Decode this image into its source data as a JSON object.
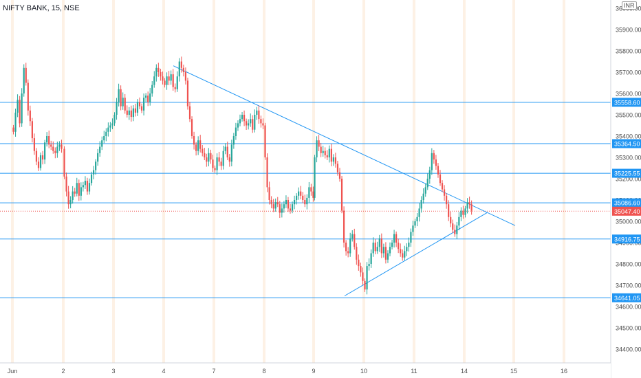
{
  "header": {
    "symbol_title": "NIFTY BANK, 15, NSE",
    "currency_badge": "INR"
  },
  "colors": {
    "up": "#26a69a",
    "down": "#ef5350",
    "level_line": "#2196f3",
    "trendline": "#2196f3",
    "current_price": "#ef5350",
    "day_separator": "#fde8d4"
  },
  "chart_data": {
    "type": "candlestick",
    "title": "NIFTY BANK, 15, NSE",
    "y_axis": {
      "range": [
        34350,
        36080
      ],
      "ticks": [
        34400,
        34500,
        34600,
        34700,
        34800,
        34900,
        35000,
        35100,
        35200,
        35300,
        35400,
        35500,
        35600,
        35700,
        35800,
        35900,
        36000
      ],
      "tick_labels": [
        "34400.00",
        "34500.00",
        "34600.00",
        "34700.00",
        "34800.00",
        "34900.00",
        "35000.00",
        "35100.00",
        "35200.00",
        "35300.00",
        "35400.00",
        "35500.00",
        "35600.00",
        "35700.00",
        "35800.00",
        "35900.00",
        "36000.00"
      ]
    },
    "x_axis": {
      "labels": [
        "Jun",
        "2",
        "3",
        "4",
        "7",
        "8",
        "9",
        "10",
        "11",
        "14",
        "15",
        "16"
      ]
    },
    "horizontal_levels": [
      {
        "value": 35558.6,
        "label": "35558.60"
      },
      {
        "value": 35364.5,
        "label": "35364.50"
      },
      {
        "value": 35225.55,
        "label": "35225.55"
      },
      {
        "value": 35086.6,
        "label": "35086.60"
      },
      {
        "value": 34916.75,
        "label": "34916.75"
      },
      {
        "value": 34641.05,
        "label": "34641.05"
      }
    ],
    "current_price": {
      "value": 35047.4,
      "label": "35047.40"
    },
    "trendlines": [
      {
        "name": "upper",
        "from": {
          "day": "4",
          "price": 35730
        },
        "to": {
          "day": "15",
          "price": 34980
        }
      },
      {
        "name": "lower",
        "from": {
          "day": "10",
          "price": 34650
        },
        "to": {
          "day": "14",
          "price": 35040
        }
      }
    ],
    "days": [
      {
        "label": "1 Jun",
        "closes": [
          35420,
          35510,
          35570,
          35460,
          35600,
          35720,
          35650,
          35520,
          35470,
          35390,
          35330,
          35280,
          35250,
          35310,
          35290,
          35370,
          35400,
          35360,
          35350,
          35330,
          35320,
          35350,
          35360,
          35340
        ]
      },
      {
        "label": "2",
        "closes": [
          35210,
          35140,
          35080,
          35100,
          35140,
          35130,
          35180,
          35120,
          35160,
          35170,
          35190,
          35140,
          35180,
          35220,
          35240,
          35280,
          35320,
          35350,
          35380,
          35400,
          35420,
          35440,
          35450,
          35460
        ]
      },
      {
        "label": "3",
        "closes": [
          35500,
          35560,
          35620,
          35540,
          35580,
          35520,
          35500,
          35520,
          35490,
          35530,
          35510,
          35560,
          35540,
          35520,
          35580,
          35590,
          35560,
          35600,
          35640,
          35680,
          35720,
          35700,
          35680,
          35660
        ]
      },
      {
        "label": "4",
        "closes": [
          35640,
          35680,
          35660,
          35690,
          35630,
          35620,
          35680,
          35750,
          35720,
          35700,
          35660,
          35540,
          35480,
          35400,
          35360,
          35330,
          35380,
          35340,
          35320,
          35300,
          35280,
          35320,
          35290,
          35250
        ]
      },
      {
        "label": "7",
        "closes": [
          35240,
          35300,
          35280,
          35260,
          35330,
          35350,
          35300,
          35280,
          35360,
          35400,
          35440,
          35460,
          35480,
          35500,
          35470,
          35450,
          35460,
          35480,
          35430,
          35500,
          35520,
          35480,
          35460,
          35450
        ]
      },
      {
        "label": "8",
        "closes": [
          35300,
          35160,
          35100,
          35080,
          35060,
          35090,
          35080,
          35040,
          35060,
          35080,
          35100,
          35060,
          35050,
          35080,
          35100,
          35120,
          35140,
          35120,
          35100,
          35080,
          35110,
          35160,
          35140,
          35110
        ]
      },
      {
        "label": "9",
        "closes": [
          35300,
          35380,
          35350,
          35320,
          35330,
          35310,
          35300,
          35340,
          35280,
          35300,
          35270,
          35230,
          35200,
          35050,
          34900,
          34860,
          34850,
          34920,
          34940,
          34880,
          34820,
          34790,
          34760,
          34720
        ]
      },
      {
        "label": "10",
        "closes": [
          34680,
          34790,
          34800,
          34850,
          34900,
          34860,
          34880,
          34920,
          34850,
          34880,
          34820,
          34850,
          34880,
          34900,
          34940,
          34900,
          34870,
          34850,
          34830,
          34860,
          34880,
          34900,
          34950,
          34980
        ]
      },
      {
        "label": "11",
        "closes": [
          35000,
          35020,
          35060,
          35100,
          35130,
          35160,
          35200,
          35240,
          35320,
          35290,
          35260,
          35220,
          35180,
          35150,
          35120,
          35080,
          35020,
          34990,
          34960,
          34940,
          34980,
          35020,
          35050,
          35030
        ]
      },
      {
        "label": "14",
        "closes": [
          35060,
          35090,
          35080,
          35050
        ]
      }
    ]
  }
}
